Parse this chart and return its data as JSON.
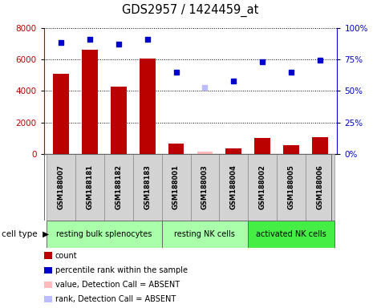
{
  "title": "GDS2957 / 1424459_at",
  "samples": [
    "GSM188007",
    "GSM188181",
    "GSM188182",
    "GSM188183",
    "GSM188001",
    "GSM188003",
    "GSM188004",
    "GSM188002",
    "GSM188005",
    "GSM188006"
  ],
  "count_values": [
    5100,
    6600,
    4250,
    6050,
    650,
    null,
    380,
    1000,
    550,
    1050
  ],
  "count_absent": [
    null,
    null,
    null,
    null,
    null,
    130,
    null,
    null,
    null,
    null
  ],
  "rank_values": [
    88,
    91,
    87,
    91,
    65,
    null,
    58,
    73,
    65,
    74
  ],
  "rank_absent": [
    null,
    null,
    null,
    null,
    null,
    53,
    null,
    null,
    null,
    null
  ],
  "ylim_left": [
    0,
    8000
  ],
  "ylim_right": [
    0,
    100
  ],
  "yticks_left": [
    0,
    2000,
    4000,
    6000,
    8000
  ],
  "yticks_right": [
    0,
    25,
    50,
    75,
    100
  ],
  "ytick_labels_right": [
    "0%",
    "25%",
    "50%",
    "75%",
    "100%"
  ],
  "bar_color": "#bb0000",
  "bar_absent_color": "#ffbbbb",
  "dot_color": "#0000cc",
  "dot_absent_color": "#bbbbff",
  "bar_width": 0.55,
  "legend_items": [
    {
      "label": "count",
      "color": "#bb0000"
    },
    {
      "label": "percentile rank within the sample",
      "color": "#0000cc"
    },
    {
      "label": "value, Detection Call = ABSENT",
      "color": "#ffbbbb"
    },
    {
      "label": "rank, Detection Call = ABSENT",
      "color": "#bbbbff"
    }
  ],
  "group_colors": {
    "light": "#aaffaa",
    "bright": "#44ee44"
  }
}
